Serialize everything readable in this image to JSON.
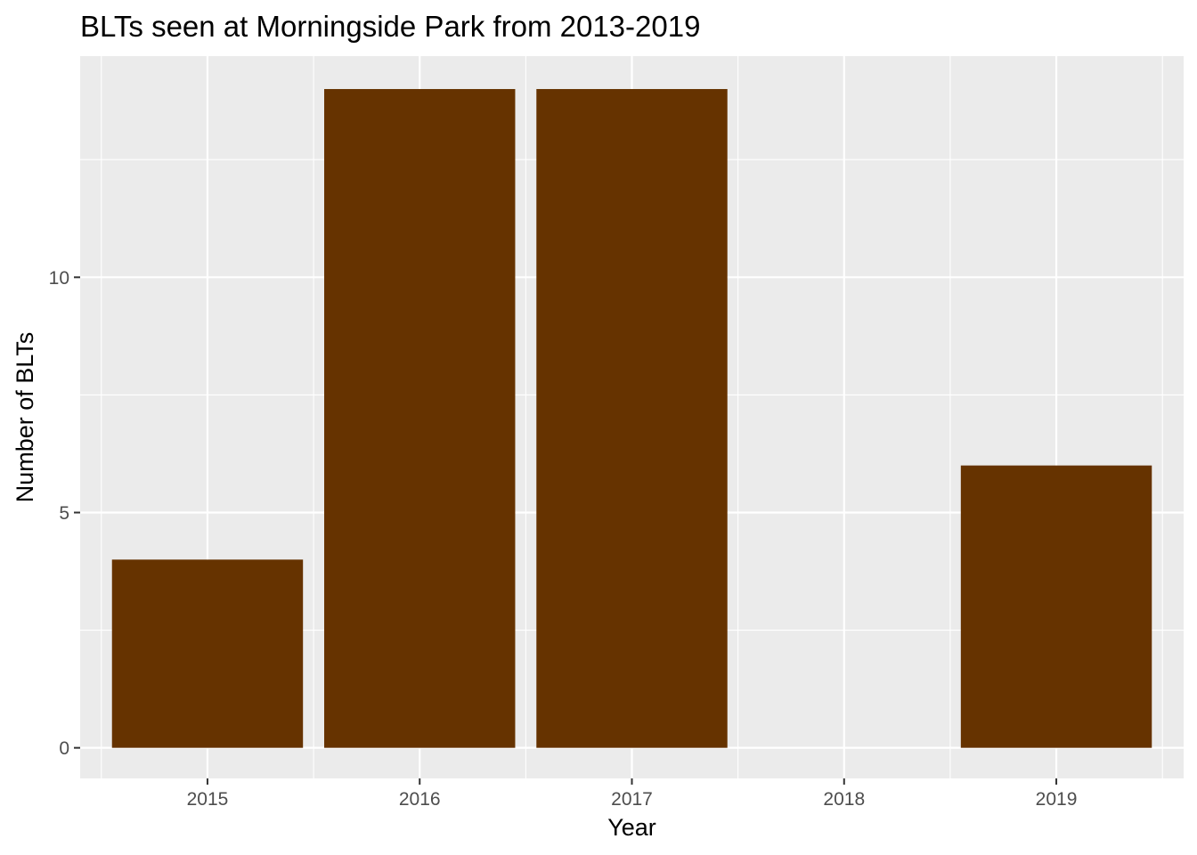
{
  "chart_data": {
    "type": "bar",
    "title": "BLTs seen at Morningside Park from 2013-2019",
    "xlabel": "Year",
    "ylabel": "Number of BLTs",
    "categories": [
      "2015",
      "2016",
      "2017",
      "2018",
      "2019"
    ],
    "values": [
      4,
      14,
      14,
      0,
      6
    ],
    "ylim": [
      -0.65,
      14.7
    ],
    "yticks": [
      0,
      5,
      10
    ],
    "grid": true,
    "bar_color": "#663300",
    "panel_color": "#EBEBEB"
  }
}
